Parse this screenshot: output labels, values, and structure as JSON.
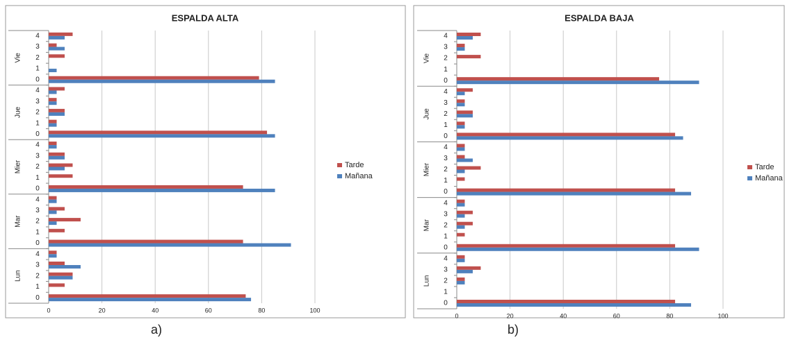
{
  "chart_data": [
    {
      "type": "bar",
      "orientation": "horizontal",
      "title": "ESPALDA ALTA",
      "caption": "a)",
      "groups": [
        {
          "name": "Lun",
          "categories": [
            "0",
            "1",
            "2",
            "3",
            "4"
          ]
        },
        {
          "name": "Mar",
          "categories": [
            "0",
            "1",
            "2",
            "3",
            "4"
          ]
        },
        {
          "name": "Mier",
          "categories": [
            "0",
            "1",
            "2",
            "3",
            "4"
          ]
        },
        {
          "name": "Jue",
          "categories": [
            "0",
            "1",
            "2",
            "3",
            "4"
          ]
        },
        {
          "name": "Vie",
          "categories": [
            "0",
            "1",
            "2",
            "3",
            "4"
          ]
        }
      ],
      "series": [
        {
          "name": "Tarde",
          "color": "#c0504d",
          "values": [
            74,
            6,
            9,
            6,
            3,
            73,
            6,
            12,
            6,
            3,
            73,
            9,
            9,
            6,
            3,
            82,
            3,
            6,
            3,
            6,
            79,
            0,
            6,
            3,
            9
          ]
        },
        {
          "name": "Mañana",
          "color": "#4f81bd",
          "values": [
            76,
            0,
            9,
            12,
            3,
            91,
            0,
            3,
            3,
            3,
            85,
            0,
            6,
            6,
            3,
            85,
            3,
            6,
            3,
            3,
            85,
            3,
            0,
            6,
            6
          ]
        }
      ],
      "xlim": [
        0,
        100
      ],
      "xticks": [
        0,
        20,
        40,
        60,
        80,
        100
      ],
      "grid": true,
      "legend": "right"
    },
    {
      "type": "bar",
      "orientation": "horizontal",
      "title": "ESPALDA BAJA",
      "caption": "b)",
      "groups": [
        {
          "name": "Lun",
          "categories": [
            "0",
            "1",
            "2",
            "3",
            "4"
          ]
        },
        {
          "name": "Mar",
          "categories": [
            "0",
            "1",
            "2",
            "3",
            "4"
          ]
        },
        {
          "name": "Mier",
          "categories": [
            "0",
            "1",
            "2",
            "3",
            "4"
          ]
        },
        {
          "name": "Jue",
          "categories": [
            "0",
            "1",
            "2",
            "3",
            "4"
          ]
        },
        {
          "name": "Vie",
          "categories": [
            "0",
            "1",
            "2",
            "3",
            "4"
          ]
        }
      ],
      "series": [
        {
          "name": "Tarde",
          "color": "#c0504d",
          "values": [
            82,
            0,
            3,
            9,
            3,
            82,
            3,
            6,
            6,
            3,
            82,
            3,
            9,
            3,
            3,
            82,
            3,
            6,
            3,
            6,
            76,
            0,
            9,
            3,
            9
          ]
        },
        {
          "name": "Mañana",
          "color": "#4f81bd",
          "values": [
            88,
            0,
            3,
            6,
            3,
            91,
            0,
            3,
            3,
            3,
            88,
            0,
            3,
            6,
            3,
            85,
            3,
            6,
            3,
            3,
            91,
            0,
            0,
            3,
            6
          ]
        }
      ],
      "xlim": [
        0,
        100
      ],
      "xticks": [
        0,
        20,
        40,
        60,
        80,
        100
      ],
      "grid": true,
      "legend": "right"
    }
  ]
}
